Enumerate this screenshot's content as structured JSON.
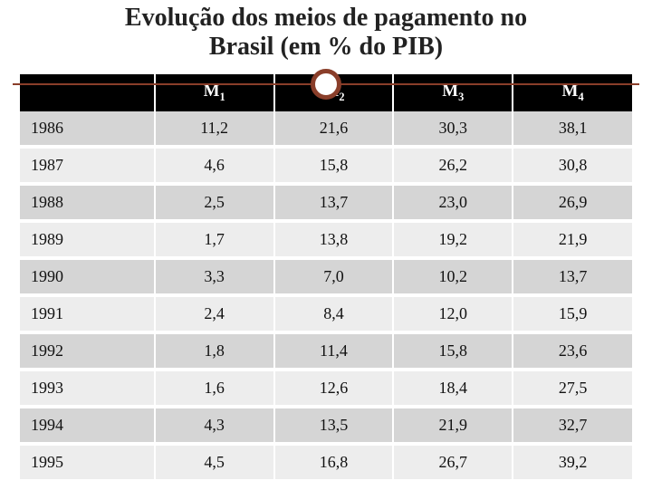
{
  "title_line1": "Evolução dos meios de pagamento no",
  "title_line2": "Brasil (em % do PIB)",
  "accent_color": "#8a3e2a",
  "table": {
    "header_bg": "#000000",
    "header_fg": "#ffffff",
    "row_odd_bg": "#d5d5d5",
    "row_even_bg": "#ededed",
    "columns": [
      {
        "label_main": "",
        "label_sub": ""
      },
      {
        "label_main": "M",
        "label_sub": "1"
      },
      {
        "label_main": "M",
        "label_sub": "2"
      },
      {
        "label_main": "M",
        "label_sub": "3"
      },
      {
        "label_main": "M",
        "label_sub": "4"
      }
    ],
    "rows": [
      {
        "year": "1986",
        "m1": "11,2",
        "m2": "21,6",
        "m3": "30,3",
        "m4": "38,1"
      },
      {
        "year": "1987",
        "m1": "4,6",
        "m2": "15,8",
        "m3": "26,2",
        "m4": "30,8"
      },
      {
        "year": "1988",
        "m1": "2,5",
        "m2": "13,7",
        "m3": "23,0",
        "m4": "26,9"
      },
      {
        "year": "1989",
        "m1": "1,7",
        "m2": "13,8",
        "m3": "19,2",
        "m4": "21,9"
      },
      {
        "year": "1990",
        "m1": "3,3",
        "m2": "7,0",
        "m3": "10,2",
        "m4": "13,7"
      },
      {
        "year": "1991",
        "m1": "2,4",
        "m2": "8,4",
        "m3": "12,0",
        "m4": "15,9"
      },
      {
        "year": "1992",
        "m1": "1,8",
        "m2": "11,4",
        "m3": "15,8",
        "m4": "23,6"
      },
      {
        "year": "1993",
        "m1": "1,6",
        "m2": "12,6",
        "m3": "18,4",
        "m4": "27,5"
      },
      {
        "year": "1994",
        "m1": "4,3",
        "m2": "13,5",
        "m3": "21,9",
        "m4": "32,7"
      },
      {
        "year": "1995",
        "m1": "4,5",
        "m2": "16,8",
        "m3": "26,7",
        "m4": "39,2"
      }
    ]
  }
}
